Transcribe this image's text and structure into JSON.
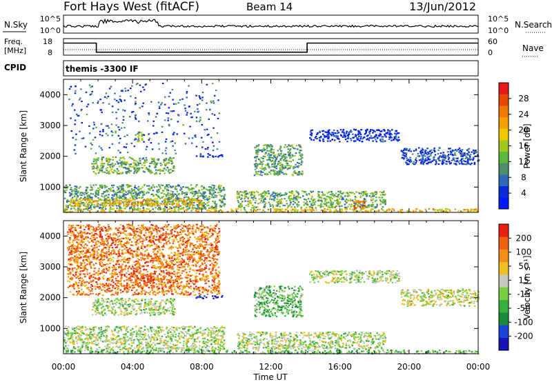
{
  "header": {
    "title": "Fort Hays West (fitACF)",
    "beam": "Beam 14",
    "date": "13/Jun/2012"
  },
  "strip_nsky": {
    "label": "N.Sky",
    "tick_top": "10^5",
    "tick_bottom": "10^0",
    "right_label": "N.Search",
    "right_tick_top": "10^5",
    "right_tick_bottom": "10^0"
  },
  "strip_freq": {
    "label_line1": "Freq.",
    "label_line2": "[MHz]",
    "tick_top": "18",
    "tick_bottom": "8",
    "right_label": "Nave",
    "right_tick_top": "60",
    "right_tick_bottom": "0",
    "freq_steps": [
      {
        "start_h": 0,
        "end_h": 1.9,
        "level": 0.75
      },
      {
        "start_h": 1.9,
        "end_h": 14.1,
        "level": 0.15
      },
      {
        "start_h": 14.1,
        "end_h": 24,
        "level": 0.75
      }
    ]
  },
  "strip_cpid": {
    "label": "CPID",
    "text": "themis -3300 IF"
  },
  "chart_data": [
    {
      "type": "heatmap",
      "panel": "power",
      "ylabel": "Slant Range [km]",
      "xlabel": "",
      "xlim_hours": [
        0,
        24
      ],
      "ylim": [
        180,
        4500
      ],
      "y_ticks": [
        "1000",
        "2000",
        "3000",
        "4000"
      ],
      "y_tick_values": [
        1000,
        2000,
        3000,
        4000
      ],
      "colorbar_label": "Power [dB]",
      "colorbar_ticks": [
        "4",
        "8",
        "12",
        "16",
        "20",
        "24",
        "28"
      ],
      "colorbar_colors": [
        "#0018ff",
        "#0a2ad8",
        "#2f6ab4",
        "#4f8e6c",
        "#5ab83c",
        "#a0c820",
        "#f0c800",
        "#f5a000",
        "#f07800",
        "#e84800",
        "#e81818"
      ],
      "features": [
        {
          "h0": 0.0,
          "h1": 9.3,
          "range0": 300,
          "range1": 1100,
          "level": 0.35
        },
        {
          "h0": 0.3,
          "h1": 8.0,
          "range0": 400,
          "range1": 650,
          "level": 0.65
        },
        {
          "h0": 1.6,
          "h1": 6.4,
          "range0": 1450,
          "range1": 2000,
          "level": 0.4
        },
        {
          "h0": 4.1,
          "h1": 4.6,
          "range0": 2500,
          "range1": 2800,
          "level": 0.45
        },
        {
          "h0": 7.6,
          "h1": 9.2,
          "range0": 2000,
          "range1": 2100,
          "level": 0.15
        },
        {
          "h0": 11.0,
          "h1": 13.8,
          "range0": 1400,
          "range1": 2400,
          "level": 0.35
        },
        {
          "h0": 10.0,
          "h1": 18.6,
          "range0": 350,
          "range1": 900,
          "level": 0.4
        },
        {
          "h0": 16.6,
          "h1": 17.4,
          "range0": 300,
          "range1": 600,
          "level": 0.85
        },
        {
          "h0": 14.2,
          "h1": 19.4,
          "range0": 2500,
          "range1": 2900,
          "level": 0.1
        },
        {
          "h0": 19.5,
          "h1": 24.0,
          "range0": 1750,
          "range1": 2300,
          "level": 0.15
        },
        {
          "h0": 0.0,
          "h1": 24.0,
          "range0": 200,
          "range1": 320,
          "level": 0.6
        },
        {
          "h0": 0.2,
          "h1": 9.0,
          "range0": 2100,
          "range1": 4400,
          "level": 0.2
        }
      ]
    },
    {
      "type": "heatmap",
      "panel": "velocity",
      "ylabel": "Slant Range [km]",
      "xlabel": "Time UT",
      "xlim_hours": [
        0,
        24
      ],
      "ylim": [
        180,
        4500
      ],
      "y_ticks": [
        "1000",
        "2000",
        "3000",
        "4000"
      ],
      "y_tick_values": [
        1000,
        2000,
        3000,
        4000
      ],
      "x_ticks": [
        "00:00",
        "04:00",
        "08:00",
        "12:00",
        "16:00",
        "20:00",
        "00:00"
      ],
      "x_tick_hours": [
        0,
        4,
        8,
        12,
        16,
        20,
        24
      ],
      "colorbar_label": "Velocity [m s⁻¹]",
      "colorbar_ticks": [
        "200",
        "100",
        "50",
        "15",
        "-15",
        "-50",
        "-100",
        "-200"
      ],
      "colorbar_colors": [
        "#1414b4",
        "#1c44d8",
        "#1a8a3c",
        "#38b040",
        "#78d040",
        "#c8c8c0",
        "#f0c020",
        "#f09018",
        "#f06010",
        "#e82010"
      ],
      "features": [
        {
          "h0": 0.0,
          "h1": 9.3,
          "range0": 300,
          "range1": 1100,
          "level": 0.5
        },
        {
          "h0": 1.6,
          "h1": 6.4,
          "range0": 1450,
          "range1": 2000,
          "level": 0.5
        },
        {
          "h0": 4.1,
          "h1": 5.2,
          "range0": 2400,
          "range1": 2800,
          "level": 0.97
        },
        {
          "h0": 11.0,
          "h1": 13.8,
          "range0": 1400,
          "range1": 2400,
          "level": 0.38
        },
        {
          "h0": 10.0,
          "h1": 18.6,
          "range0": 350,
          "range1": 900,
          "level": 0.5
        },
        {
          "h0": 14.2,
          "h1": 19.4,
          "range0": 2500,
          "range1": 2900,
          "level": 0.5
        },
        {
          "h0": 19.5,
          "h1": 24.0,
          "range0": 1750,
          "range1": 2300,
          "level": 0.55
        },
        {
          "h0": 0.0,
          "h1": 24.0,
          "range0": 200,
          "range1": 320,
          "level": 0.4
        },
        {
          "h0": 0.2,
          "h1": 9.0,
          "range0": 2100,
          "range1": 4400,
          "level": 0.8
        },
        {
          "h0": 7.6,
          "h1": 9.2,
          "range0": 2000,
          "range1": 2100,
          "level": 0.05
        }
      ]
    }
  ]
}
